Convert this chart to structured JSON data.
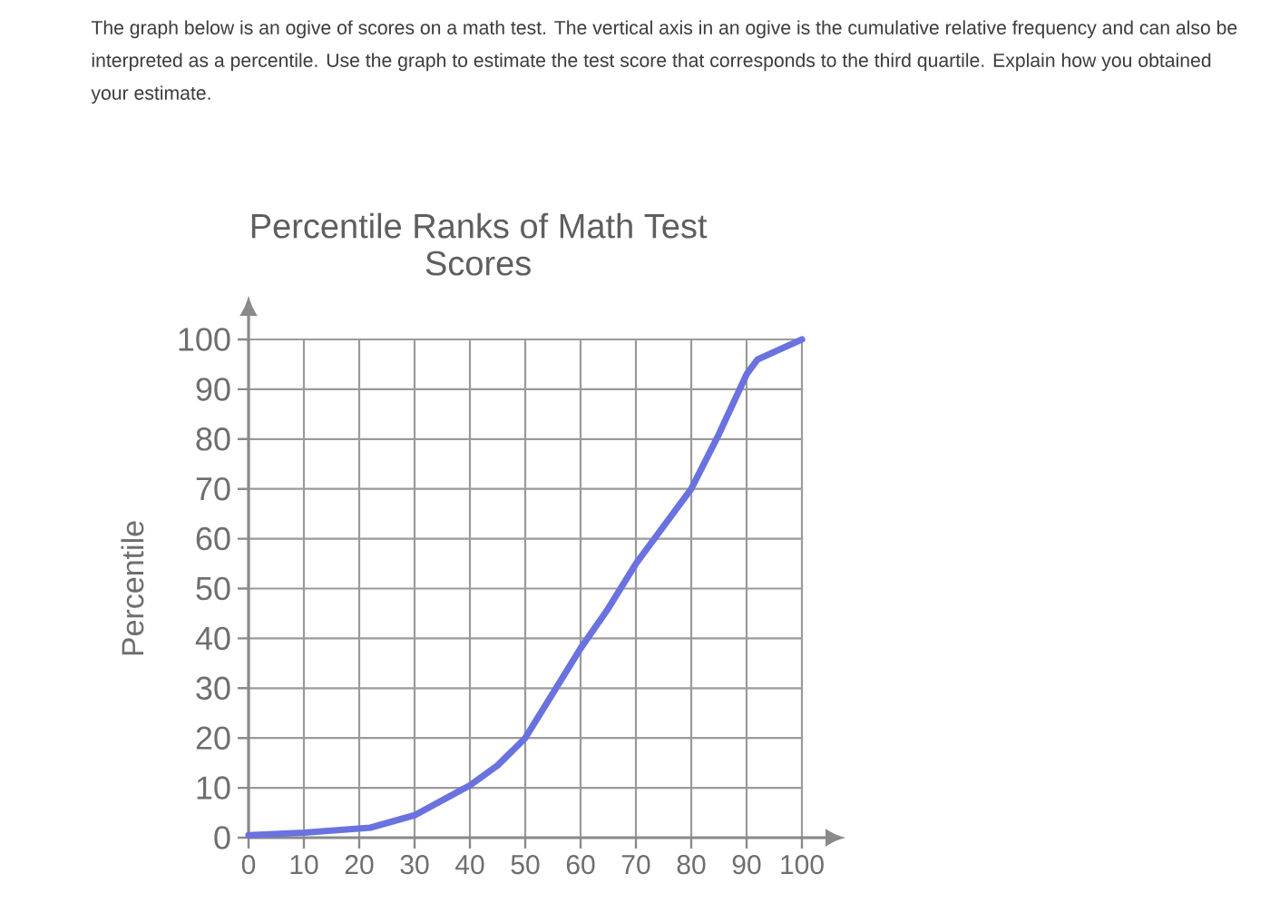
{
  "chart_data": {
    "type": "line",
    "title": "Percentile Ranks of Math Test Scores",
    "ylabel": "Percentile",
    "annotations": [
      "The graph below is an ogive of scores on a math test. The vertical axis in an ogive is the cumulative relative frequency and can also be interpreted as a percentile. Use the graph to estimate the test score that corresponds to the third quartile. Explain how you obtained your estimate."
    ],
    "x": [
      0,
      10,
      22,
      30,
      40,
      45,
      50,
      55,
      60,
      65,
      70,
      75,
      80,
      85,
      90,
      92,
      95,
      100
    ],
    "values": [
      0.5,
      1,
      2,
      4.5,
      10.5,
      14.5,
      20,
      29,
      38,
      46,
      55,
      62.5,
      70,
      81,
      93,
      96,
      97.5,
      100
    ],
    "color": "#6a72e0",
    "xlim": [
      0,
      100
    ],
    "ylim": [
      0,
      100
    ],
    "xticks": [
      0,
      10,
      20,
      30,
      40,
      50,
      60,
      70,
      80,
      90,
      100
    ],
    "yticks": [
      0,
      10,
      20,
      30,
      40,
      50,
      60,
      70,
      80,
      90,
      100
    ],
    "grid": true
  }
}
